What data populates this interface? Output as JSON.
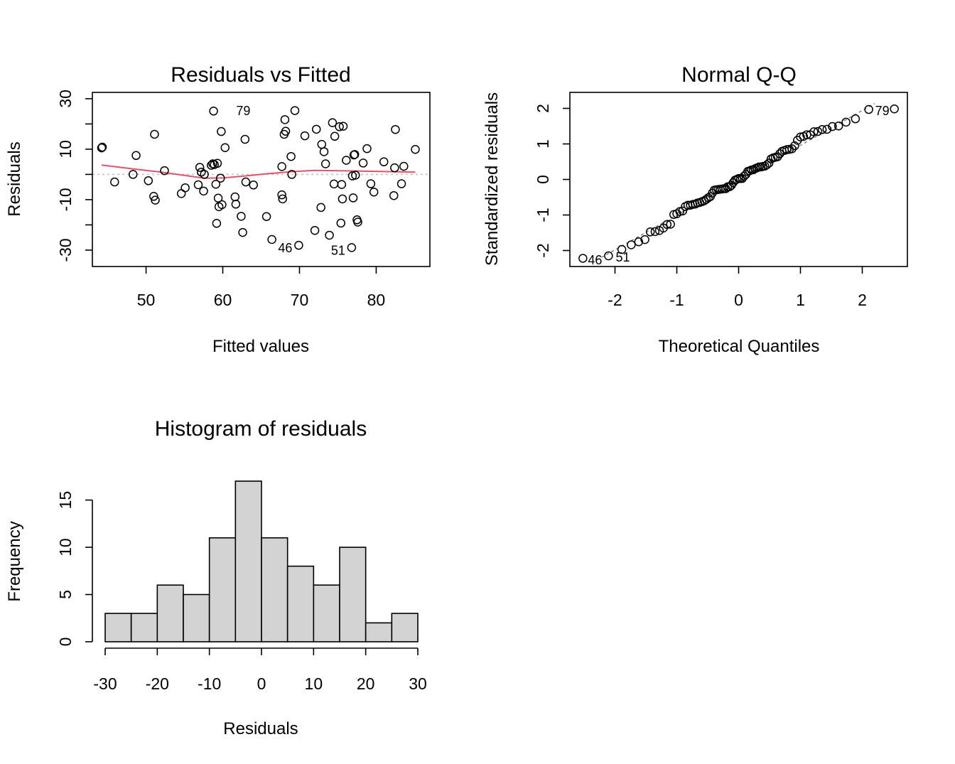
{
  "colors": {
    "smoother": "#DF536B",
    "bar_fill": "#D3D3D3",
    "zero_line": "#BEBEBE",
    "qq_line": "#808080"
  },
  "chart_data": [
    {
      "type": "scatter",
      "title": "Residuals vs Fitted",
      "xlabel": "Fitted values",
      "ylabel": "Residuals",
      "xlim": [
        43,
        87
      ],
      "ylim": [
        -36.5,
        32.5
      ],
      "xticks": [
        50,
        60,
        70,
        80
      ],
      "yticks": [
        -30,
        -20,
        -10,
        0,
        10,
        20,
        30
      ],
      "zero_line": true,
      "points": [
        [
          44.2,
          10.5
        ],
        [
          44.3,
          10.8
        ],
        [
          45.9,
          -3
        ],
        [
          48.3,
          0
        ],
        [
          48.7,
          7.5
        ],
        [
          50.3,
          -2.5
        ],
        [
          51.0,
          -8.7
        ],
        [
          51.1,
          15.9
        ],
        [
          51.2,
          -10.2
        ],
        [
          52.4,
          1.5
        ],
        [
          54.6,
          -7.6
        ],
        [
          55.1,
          -5.3
        ],
        [
          56.8,
          -4.1
        ],
        [
          57.0,
          2.8
        ],
        [
          57.2,
          0.9
        ],
        [
          57.5,
          -6.6
        ],
        [
          57.6,
          0.0
        ],
        [
          58.5,
          3.6
        ],
        [
          58.7,
          4.2
        ],
        [
          58.8,
          25.1
        ],
        [
          58.9,
          3.9
        ],
        [
          59.1,
          -3.9
        ],
        [
          59.2,
          -19.4
        ],
        [
          59.3,
          4.4
        ],
        [
          59.4,
          -9.4
        ],
        [
          59.5,
          -12.8
        ],
        [
          59.7,
          -1.5
        ],
        [
          59.8,
          17.0
        ],
        [
          59.9,
          -12.0
        ],
        [
          60.3,
          10.6
        ],
        [
          61.6,
          -8.9
        ],
        [
          61.7,
          -11.8
        ],
        [
          62.4,
          -16.6
        ],
        [
          62.6,
          -23.0
        ],
        [
          62.9,
          13.9
        ],
        [
          63.0,
          -3.0
        ],
        [
          64.0,
          -4.2
        ],
        [
          65.7,
          -16.7
        ],
        [
          66.4,
          -25.8
        ],
        [
          67.7,
          -8.1
        ],
        [
          67.7,
          3.1
        ],
        [
          67.8,
          -9.7
        ],
        [
          68.0,
          15.9
        ],
        [
          68.1,
          21.7
        ],
        [
          68.2,
          17.1
        ],
        [
          68.9,
          7.1
        ],
        [
          69.0,
          0.0
        ],
        [
          69.4,
          25.3
        ],
        [
          69.9,
          -28.1
        ],
        [
          70.7,
          15.3
        ],
        [
          72.0,
          -22.2
        ],
        [
          72.2,
          17.9
        ],
        [
          72.8,
          -13.1
        ],
        [
          72.9,
          11.9
        ],
        [
          73.2,
          9.0
        ],
        [
          73.4,
          4.2
        ],
        [
          73.9,
          -24.1
        ],
        [
          74.3,
          20.5
        ],
        [
          74.5,
          -3.8
        ],
        [
          74.6,
          15.1
        ],
        [
          75.2,
          18.9
        ],
        [
          75.4,
          -19.3
        ],
        [
          75.5,
          -4.0
        ],
        [
          75.6,
          -9.7
        ],
        [
          75.7,
          19.1
        ],
        [
          76.1,
          5.6
        ],
        [
          76.8,
          -29.0
        ],
        [
          76.9,
          -0.6
        ],
        [
          77.0,
          -9.3
        ],
        [
          77.1,
          7.7
        ],
        [
          77.2,
          7.9
        ],
        [
          77.3,
          -0.3
        ],
        [
          77.5,
          -18.0
        ],
        [
          77.6,
          -18.9
        ],
        [
          78.3,
          4.5
        ],
        [
          78.8,
          10.2
        ],
        [
          79.3,
          -3.7
        ],
        [
          79.7,
          -7.0
        ],
        [
          81.0,
          5.0
        ],
        [
          82.3,
          -8.4
        ],
        [
          82.4,
          2.6
        ],
        [
          82.5,
          17.8
        ],
        [
          83.3,
          -3.7
        ],
        [
          83.6,
          3.2
        ],
        [
          85.1,
          9.9
        ]
      ],
      "smoother": [
        [
          44.2,
          3.7
        ],
        [
          48,
          2.3
        ],
        [
          52,
          0.9
        ],
        [
          55,
          -0.4
        ],
        [
          57.6,
          -1.5
        ],
        [
          60,
          -1.4
        ],
        [
          63,
          -0.6
        ],
        [
          66,
          0.3
        ],
        [
          69,
          1.1
        ],
        [
          72,
          1.6
        ],
        [
          76,
          1.4
        ],
        [
          80,
          1.2
        ],
        [
          85.1,
          0.9
        ]
      ],
      "point_labels": [
        {
          "text": "79",
          "x": 61.0,
          "y": 25.2
        },
        {
          "text": "46",
          "x": 69.9,
          "y": -28.1
        },
        {
          "text": "51",
          "x": 76.8,
          "y": -29.0
        }
      ]
    },
    {
      "type": "scatter",
      "title": "Normal Q-Q",
      "xlabel": "Theoretical Quantiles",
      "ylabel": "Standardized residuals",
      "xlim": [
        -2.73,
        2.73
      ],
      "ylim": [
        -2.45,
        2.45
      ],
      "xticks": [
        -2,
        -1,
        0,
        1,
        2
      ],
      "yticks": [
        -2,
        -1,
        0,
        1,
        2
      ],
      "reference_line": {
        "slope": 0.98,
        "intercept": -0.02
      },
      "point_labels": [
        {
          "text": "46",
          "x": -2.53,
          "y": -2.27
        },
        {
          "text": "51",
          "x": -2.08,
          "y": -2.19
        },
        {
          "text": "79",
          "x": 2.53,
          "y": 1.93
        }
      ]
    },
    {
      "type": "bar",
      "title": "Histogram of residuals",
      "xlabel": "Residuals",
      "ylabel": "Frequency",
      "bin_edges": [
        -30,
        -25,
        -20,
        -15,
        -10,
        -5,
        0,
        5,
        10,
        15,
        20,
        25,
        30
      ],
      "values": [
        3,
        3,
        6,
        5,
        11,
        17,
        11,
        8,
        6,
        10,
        2,
        3
      ],
      "xlim": [
        -30,
        30
      ],
      "ylim": [
        0,
        17
      ],
      "xticks": [
        -30,
        -20,
        -10,
        0,
        10,
        20,
        30
      ],
      "yticks": [
        0,
        5,
        10,
        15
      ]
    }
  ]
}
